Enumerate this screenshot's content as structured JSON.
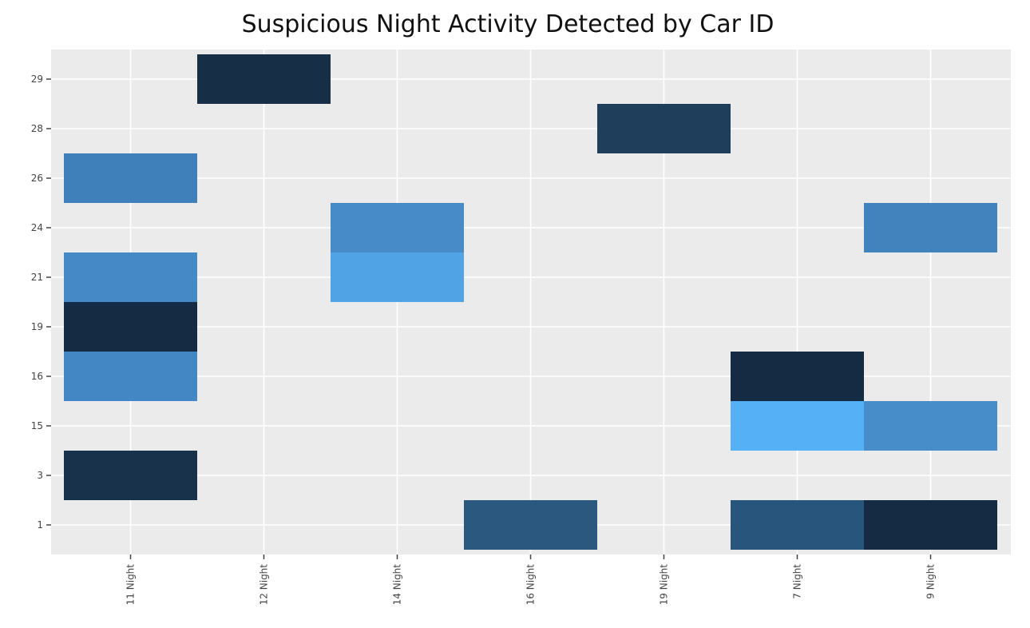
{
  "chart_data": {
    "type": "heatmap",
    "title": "Suspicious Night Activity Detected by Car ID",
    "xlabel": "",
    "ylabel": "",
    "x_categories": [
      "11 Night",
      "12 Night",
      "14 Night",
      "16 Night",
      "19 Night",
      "7 Night",
      "9 Night"
    ],
    "y_categories": [
      "1",
      "3",
      "15",
      "16",
      "19",
      "21",
      "24",
      "26",
      "28",
      "29"
    ],
    "grid": true,
    "legend": "none",
    "colors": {
      "panel_background": "#ebebeb",
      "grid_line": "#ffffff",
      "low": "#56b1f7",
      "high": "#132b43"
    },
    "cells": [
      {
        "x": "11 Night",
        "y": "3",
        "color": "#18324b"
      },
      {
        "x": "11 Night",
        "y": "16",
        "color": "#4388c5"
      },
      {
        "x": "11 Night",
        "y": "19",
        "color": "#152a43"
      },
      {
        "x": "11 Night",
        "y": "21",
        "color": "#4589c6"
      },
      {
        "x": "11 Night",
        "y": "26",
        "color": "#3f80ba"
      },
      {
        "x": "12 Night",
        "y": "29",
        "color": "#162f47"
      },
      {
        "x": "14 Night",
        "y": "21",
        "color": "#50a3e5"
      },
      {
        "x": "14 Night",
        "y": "24",
        "color": "#478cc9"
      },
      {
        "x": "16 Night",
        "y": "1",
        "color": "#2a587f"
      },
      {
        "x": "19 Night",
        "y": "28",
        "color": "#1e3e5c"
      },
      {
        "x": "7 Night",
        "y": "1",
        "color": "#28557b"
      },
      {
        "x": "7 Night",
        "y": "15",
        "color": "#56b0f6"
      },
      {
        "x": "7 Night",
        "y": "16",
        "color": "#152a43"
      },
      {
        "x": "9 Night",
        "y": "1",
        "color": "#152a43"
      },
      {
        "x": "9 Night",
        "y": "15",
        "color": "#478dca"
      },
      {
        "x": "9 Night",
        "y": "24",
        "color": "#4283bd"
      }
    ]
  }
}
